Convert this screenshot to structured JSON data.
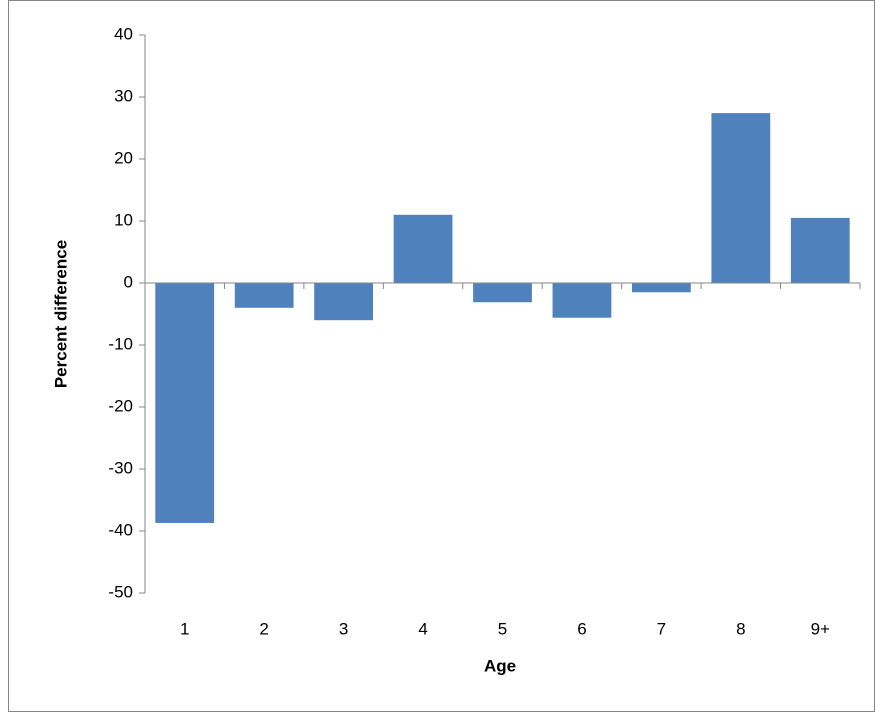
{
  "chart_data": {
    "type": "bar",
    "x_label": "Age",
    "y_label": "Percent difference",
    "categories": [
      "1",
      "2",
      "3",
      "4",
      "5",
      "6",
      "7",
      "8",
      "9+"
    ],
    "values": [
      -38.7,
      -4.0,
      -6.0,
      11.0,
      -3.1,
      -5.6,
      -1.5,
      27.4,
      10.5
    ],
    "color": "#4f81bd",
    "ylim": [
      -50,
      40
    ],
    "yticks": [
      -50,
      -40,
      -30,
      -20,
      -10,
      0,
      10,
      20,
      30,
      40
    ],
    "grid": false
  }
}
